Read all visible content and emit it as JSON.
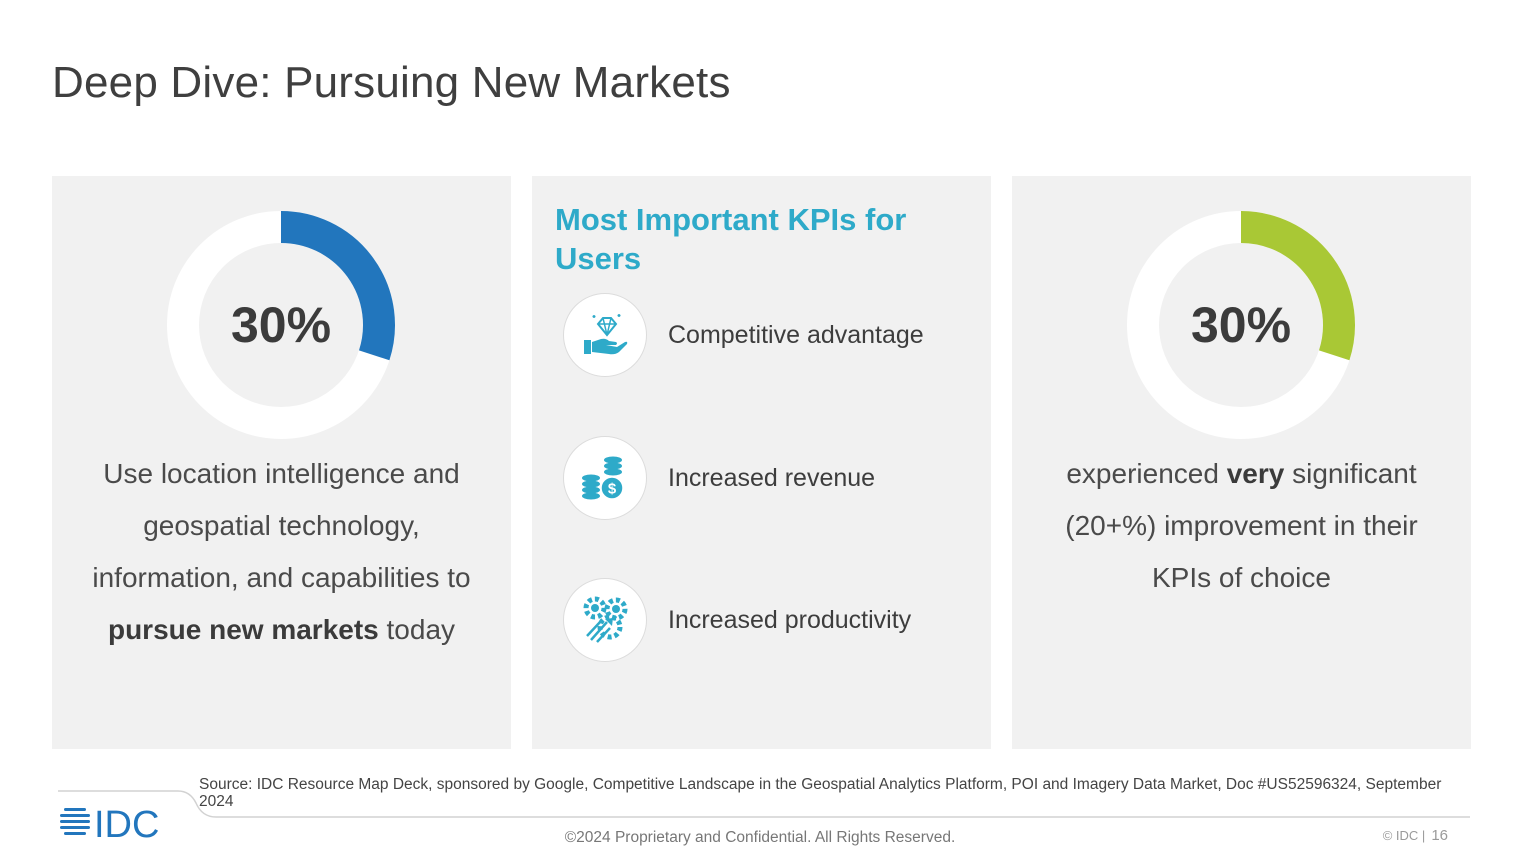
{
  "title": "Deep Dive: Pursuing New Markets",
  "left_panel": {
    "value": "30%",
    "fraction": 0.3,
    "accent_color": "#2276bd",
    "text_pre": "Use location intelligence and geospatial technology, information, and capabilities to ",
    "text_bold": "pursue new markets",
    "text_post": " today"
  },
  "middle_panel": {
    "heading": "Most Important KPIs for Users",
    "heading_color": "#2eaac9",
    "items": [
      {
        "icon": "hand-diamond-icon",
        "label": "Competitive advantage"
      },
      {
        "icon": "coins-dollar-icon",
        "label": "Increased revenue"
      },
      {
        "icon": "gears-rocket-icon",
        "label": "Increased productivity"
      }
    ]
  },
  "right_panel": {
    "value": "30%",
    "fraction": 0.3,
    "accent_color": "#a9c835",
    "text_pre": "experienced ",
    "text_bold": "very",
    "text_post": " significant (20+%) improvement in their KPIs of choice"
  },
  "footer": {
    "source": "Source: IDC Resource Map Deck, sponsored by Google, Competitive Landscape in the Geospatial Analytics Platform, POI and Imagery Data Market, Doc #US52596324, September 2024",
    "logo_text": "IDC",
    "copyright": "©2024 Proprietary and Confidential. All Rights Reserved.",
    "brand": "© IDC |",
    "page_number": "16"
  }
}
